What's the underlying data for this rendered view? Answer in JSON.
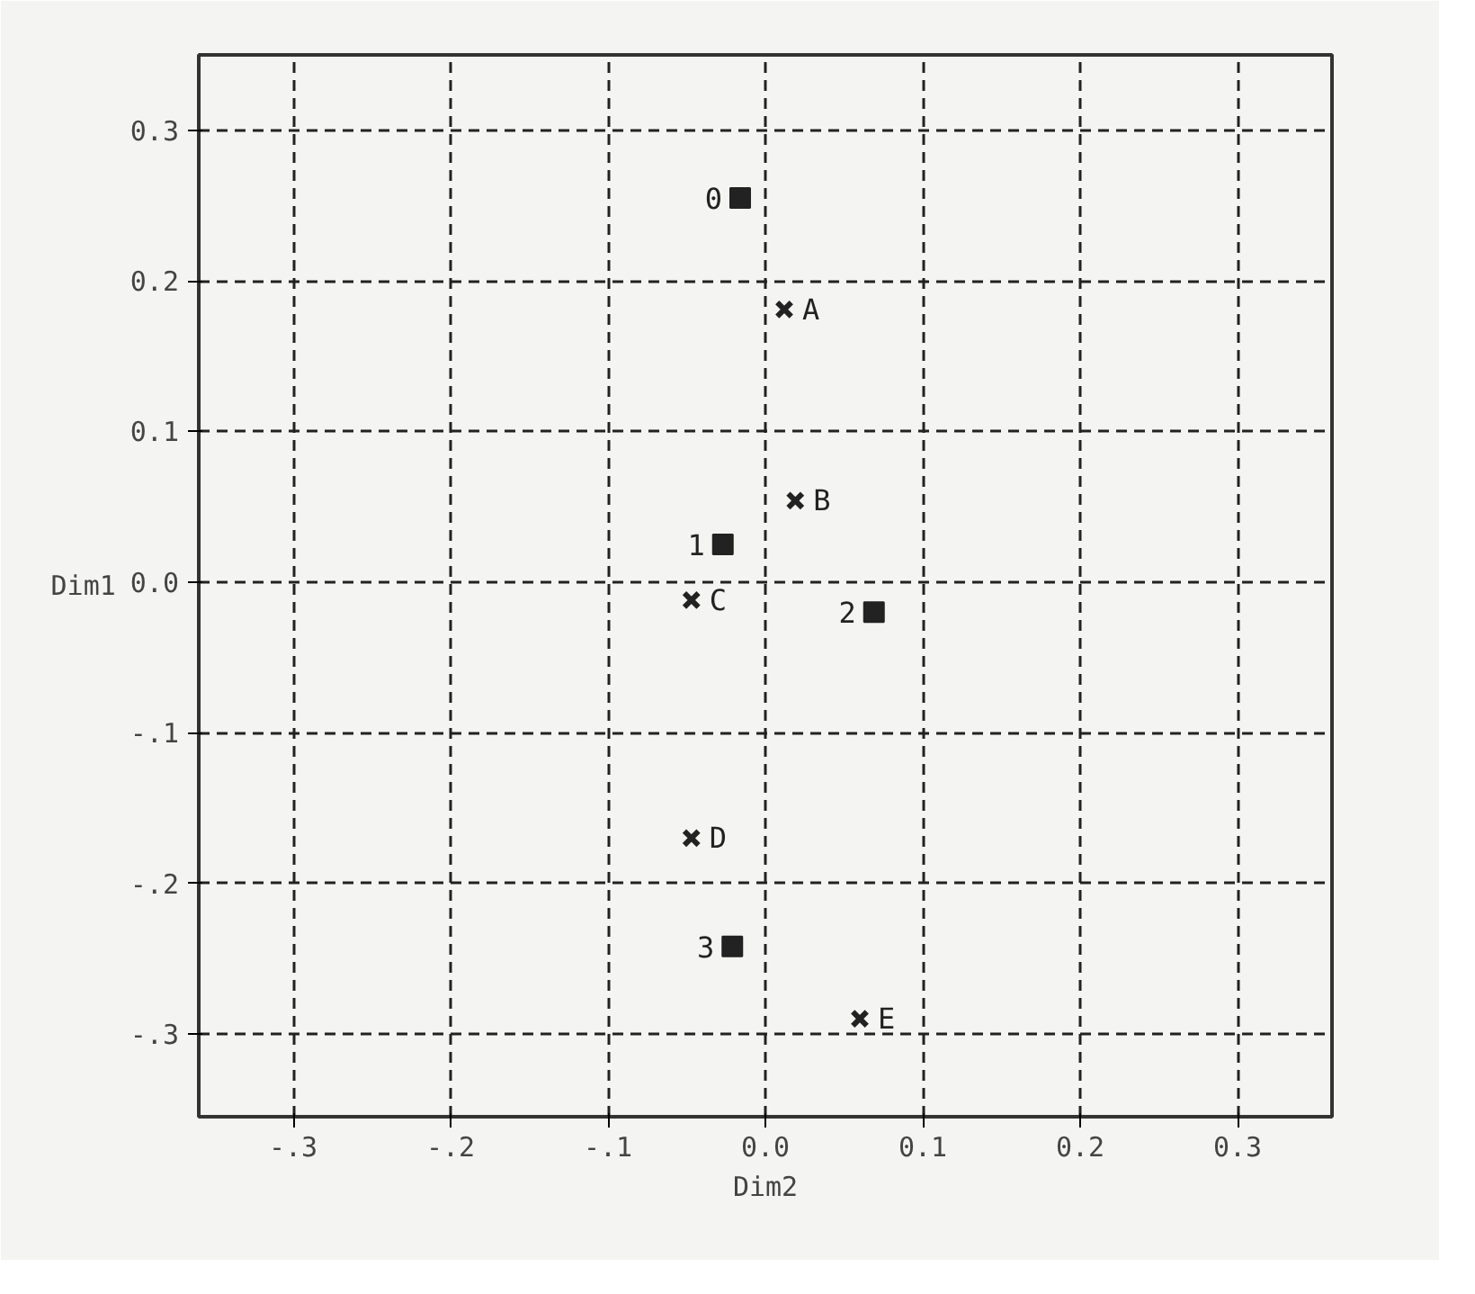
{
  "chart_data": {
    "type": "scatter",
    "xlabel": "Dim2",
    "ylabel": "Dim1",
    "xlim": [
      -0.36,
      0.36
    ],
    "ylim": [
      -0.355,
      0.35
    ],
    "xticks": [
      {
        "value": -0.3,
        "label": "-.3"
      },
      {
        "value": -0.2,
        "label": "-.2"
      },
      {
        "value": -0.1,
        "label": "-.1"
      },
      {
        "value": 0,
        "label": "0.0"
      },
      {
        "value": 0.1,
        "label": "0.1"
      },
      {
        "value": 0.2,
        "label": "0.2"
      },
      {
        "value": 0.3,
        "label": "0.3"
      }
    ],
    "yticks": [
      {
        "value": -0.3,
        "label": "-.3"
      },
      {
        "value": -0.2,
        "label": "-.2"
      },
      {
        "value": -0.1,
        "label": "-.1"
      },
      {
        "value": 0,
        "label": "0.0"
      },
      {
        "value": 0.1,
        "label": "0.1"
      },
      {
        "value": 0.2,
        "label": "0.2"
      },
      {
        "value": 0.3,
        "label": "0.3"
      }
    ],
    "grid": true,
    "line_style": "dashed",
    "series": [
      {
        "color": "#222222",
        "marker": "square",
        "x": [
          -0.016,
          -0.027,
          0.069,
          -0.021
        ],
        "values": [
          0.255,
          0.025,
          -0.02,
          -0.242
        ]
      },
      {
        "color": "#222222",
        "marker": "cross",
        "x": [
          0.012,
          0.019,
          -0.047,
          -0.047,
          0.06
        ],
        "values": [
          0.181,
          0.054,
          -0.012,
          -0.17,
          -0.29
        ]
      }
    ],
    "annotations": [
      {
        "text": "0",
        "x": -0.016,
        "y": 0.255
      },
      {
        "text": "1",
        "x": -0.027,
        "y": 0.025
      },
      {
        "text": "2",
        "x": 0.069,
        "y": -0.02
      },
      {
        "text": "3",
        "x": -0.021,
        "y": -0.242
      },
      {
        "text": "A",
        "x": 0.012,
        "y": 0.181
      },
      {
        "text": "B",
        "x": 0.019,
        "y": 0.054
      },
      {
        "text": "C",
        "x": -0.047,
        "y": -0.012
      },
      {
        "text": "D",
        "x": -0.047,
        "y": -0.17
      },
      {
        "text": "E",
        "x": 0.06,
        "y": -0.29
      }
    ]
  }
}
